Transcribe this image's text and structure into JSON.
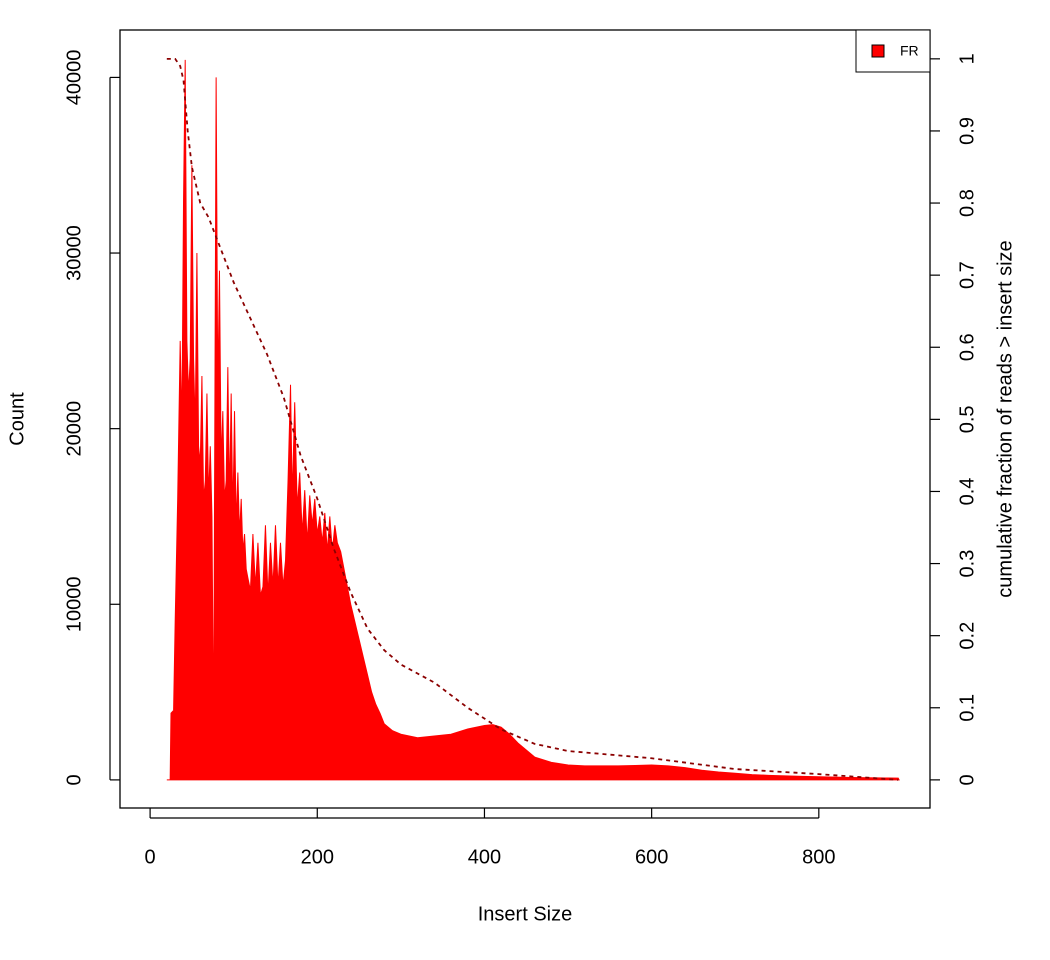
{
  "chart_data": {
    "type": "area",
    "xlabel": "Insert Size",
    "ylabel": "Count",
    "y2label": "cumulative fraction of reads > insert size",
    "xlim": [
      -36,
      933
    ],
    "ylim": [
      -1600,
      42700
    ],
    "y2lim": [
      -0.039,
      1.04
    ],
    "xticks": [
      0,
      200,
      400,
      600,
      800
    ],
    "yticks": [
      0,
      10000,
      20000,
      30000,
      40000
    ],
    "y2ticks": [
      0,
      0.1,
      0.2,
      0.3,
      0.4,
      0.5,
      0.6,
      0.7,
      0.8,
      0.9,
      1
    ],
    "legend": "topright",
    "series": [
      {
        "name": "FR",
        "color": "#ff0000",
        "x": [
          20,
          24,
          25,
          27,
          28,
          30,
          33,
          36,
          38,
          40,
          42,
          44,
          46,
          48,
          50,
          52,
          54,
          56,
          58,
          60,
          62,
          64,
          66,
          68,
          70,
          72,
          74,
          76,
          77,
          79,
          81,
          83,
          85,
          87,
          89,
          91,
          93,
          95,
          97,
          99,
          101,
          103,
          105,
          107,
          109,
          111,
          113,
          115,
          117,
          120,
          123,
          126,
          129,
          132,
          135,
          138,
          141,
          144,
          147,
          150,
          153,
          156,
          159,
          162,
          165,
          168,
          170,
          173,
          176,
          179,
          182,
          185,
          188,
          191,
          194,
          197,
          200,
          203,
          206,
          209,
          212,
          215,
          218,
          221,
          224,
          228,
          232,
          236,
          240,
          245,
          250,
          255,
          260,
          265,
          270,
          275,
          280,
          290,
          300,
          320,
          340,
          360,
          380,
          400,
          410,
          420,
          430,
          440,
          450,
          460,
          480,
          500,
          520,
          540,
          560,
          580,
          600,
          620,
          640,
          660,
          680,
          700,
          720,
          740,
          760,
          780,
          800,
          820,
          840,
          860,
          880,
          895,
          896
        ],
        "values": [
          0,
          0,
          3800,
          3900,
          3700,
          9000,
          16000,
          25000,
          20000,
          33000,
          41000,
          25000,
          22000,
          24000,
          35000,
          24000,
          20000,
          30000,
          19000,
          18000,
          23000,
          16000,
          17000,
          22000,
          16000,
          19000,
          15000,
          2000,
          15000,
          40000,
          22000,
          29000,
          18000,
          21000,
          16000,
          17000,
          23500,
          16000,
          22000,
          15000,
          21000,
          14500,
          17500,
          14000,
          16000,
          13000,
          14000,
          12000,
          11500,
          10800,
          14000,
          11000,
          13500,
          10500,
          11000,
          14500,
          10500,
          13500,
          11000,
          14500,
          11000,
          13500,
          11000,
          12500,
          17000,
          22500,
          16000,
          21500,
          15500,
          17500,
          14000,
          16500,
          13500,
          16200,
          14500,
          16000,
          14000,
          15000,
          13500,
          15200,
          13000,
          15000,
          13000,
          14500,
          13500,
          13000,
          12000,
          11000,
          10000,
          9000,
          8000,
          7000,
          6000,
          5000,
          4300,
          3800,
          3200,
          2800,
          2600,
          2400,
          2500,
          2600,
          2900,
          3100,
          3150,
          3000,
          2600,
          2100,
          1700,
          1300,
          1000,
          850,
          800,
          800,
          800,
          820,
          850,
          800,
          700,
          550,
          450,
          380,
          300,
          260,
          230,
          200,
          180,
          160,
          140,
          120,
          110,
          100,
          0
        ]
      }
    ],
    "cumulative": {
      "color": "#8b0000",
      "axis": "y2",
      "dash": true,
      "x": [
        20,
        30,
        36,
        40,
        45,
        50,
        60,
        70,
        80,
        90,
        100,
        120,
        140,
        160,
        180,
        200,
        220,
        240,
        260,
        280,
        300,
        340,
        380,
        420,
        460,
        500,
        600,
        700,
        800,
        895
      ],
      "values": [
        1,
        1,
        0.99,
        0.97,
        0.9,
        0.85,
        0.8,
        0.78,
        0.75,
        0.72,
        0.69,
        0.64,
        0.59,
        0.53,
        0.45,
        0.39,
        0.32,
        0.26,
        0.21,
        0.18,
        0.16,
        0.135,
        0.1,
        0.07,
        0.05,
        0.04,
        0.03,
        0.015,
        0.008,
        0
      ]
    }
  }
}
